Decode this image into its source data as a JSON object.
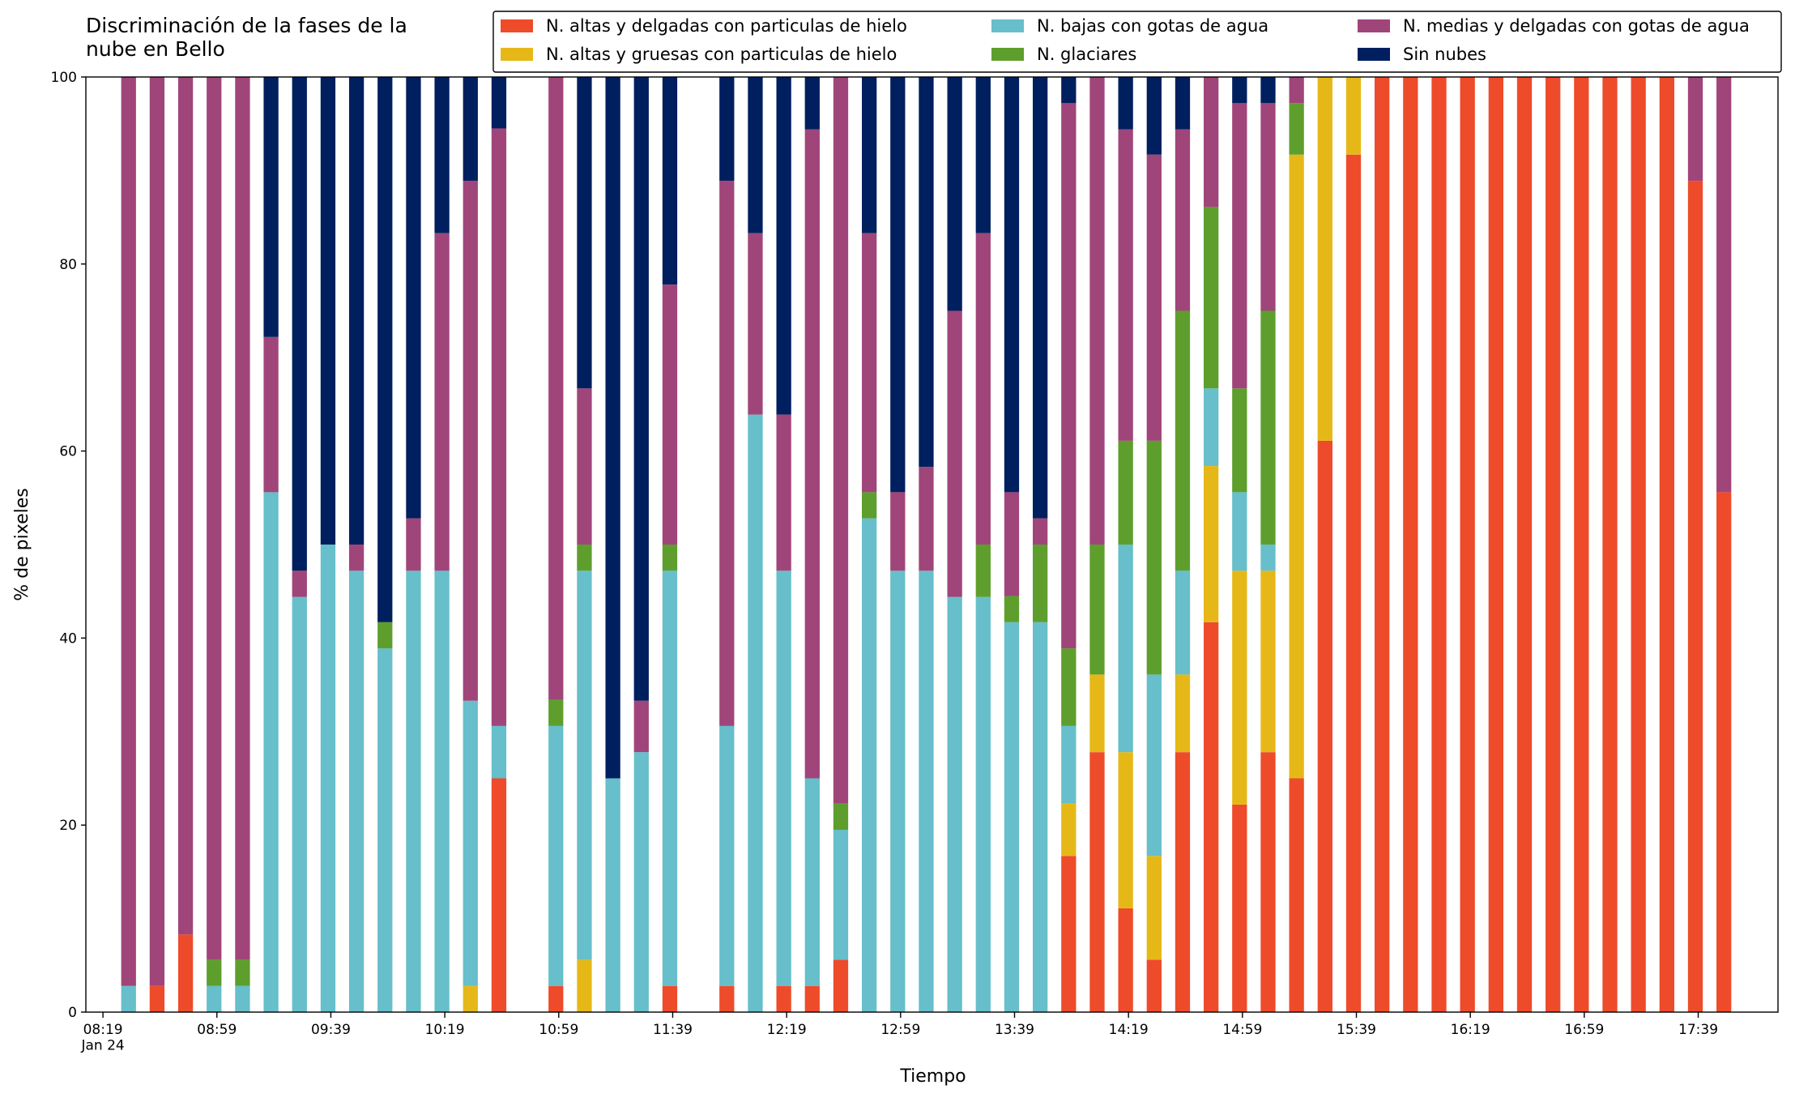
{
  "chart_data": {
    "type": "stacked_bar",
    "title": "Discriminación de la fases de la\nnube en Bello",
    "xlabel": "Tiempo",
    "ylabel": "% de pixeles",
    "x": [
      "08:28",
      "08:38",
      "08:48",
      "08:58",
      "09:08",
      "09:18",
      "09:28",
      "09:38",
      "09:48",
      "09:58",
      "10:08",
      "10:18",
      "10:28",
      "10:38",
      "10:58",
      "11:08",
      "11:18",
      "11:28",
      "11:38",
      "11:58",
      "12:08",
      "12:18",
      "12:28",
      "12:38",
      "12:48",
      "12:58",
      "13:08",
      "13:18",
      "13:28",
      "13:38",
      "13:48",
      "13:58",
      "14:08",
      "14:18",
      "14:28",
      "14:38",
      "14:48",
      "14:58",
      "15:08",
      "15:18",
      "15:28",
      "15:38",
      "15:48",
      "15:58",
      "16:08",
      "16:18",
      "16:28",
      "16:38",
      "16:48",
      "16:58",
      "17:08",
      "17:18",
      "17:28",
      "17:38",
      "17:48"
    ],
    "xlim": [
      "08:13",
      "18:07"
    ],
    "xticks": [
      {
        "value": "08:19",
        "label": "08:19\nJan 24"
      },
      "08:59",
      "09:39",
      "10:19",
      "10:59",
      "11:39",
      "12:19",
      "12:59",
      "13:39",
      "14:19",
      "14:59",
      "15:39",
      "16:19",
      "16:59",
      "17:39"
    ],
    "ylim": [
      0,
      100
    ],
    "yticks": [
      0,
      20,
      40,
      60,
      80,
      100
    ],
    "legend": "upper right",
    "series": [
      {
        "name": "N. altas y delgadas con particulas de hielo",
        "color": "#ee4b2b",
        "values": [
          0,
          2.8,
          8.3,
          0,
          0,
          0,
          0,
          0,
          0,
          0,
          0,
          0,
          0,
          25,
          2.8,
          0,
          0,
          0,
          2.8,
          2.8,
          0,
          2.8,
          2.8,
          5.6,
          0,
          0,
          0,
          0,
          0,
          0,
          0,
          16.7,
          27.8,
          11.1,
          5.6,
          27.8,
          41.7,
          22.2,
          27.8,
          25,
          61.1,
          91.7,
          100,
          100,
          100,
          100,
          100,
          100,
          100,
          100,
          100,
          100,
          100,
          88.9,
          55.6
        ]
      },
      {
        "name": "N. altas y gruesas con particulas de hielo",
        "color": "#e6b817",
        "values": [
          0,
          0,
          0,
          0,
          0,
          0,
          0,
          0,
          0,
          0,
          0,
          0,
          2.8,
          0,
          0,
          5.6,
          0,
          0,
          0,
          0,
          0,
          0,
          0,
          0,
          0,
          0,
          0,
          0,
          0,
          0,
          0,
          5.6,
          8.3,
          16.7,
          11.1,
          8.3,
          16.7,
          25,
          19.4,
          66.7,
          38.9,
          8.3,
          0,
          0,
          0,
          0,
          0,
          0,
          0,
          0,
          0,
          0,
          0,
          0,
          0
        ]
      },
      {
        "name": "N. bajas con gotas de agua",
        "color": "#66bfca",
        "values": [
          2.8,
          0,
          0,
          2.8,
          2.8,
          55.6,
          44.4,
          50,
          47.2,
          38.9,
          47.2,
          47.2,
          30.5,
          5.6,
          27.8,
          41.6,
          25,
          27.8,
          44.4,
          27.8,
          63.9,
          44.4,
          22.2,
          13.9,
          52.8,
          47.2,
          47.2,
          44.4,
          44.4,
          41.7,
          41.7,
          8.3,
          0,
          22.2,
          19.4,
          11.1,
          8.3,
          8.4,
          2.8,
          0,
          0,
          0,
          0,
          0,
          0,
          0,
          0,
          0,
          0,
          0,
          0,
          0,
          0,
          0,
          0
        ]
      },
      {
        "name": "N. glaciares",
        "color": "#5e9e2d",
        "values": [
          0,
          0,
          0,
          2.8,
          2.8,
          0,
          0,
          0,
          0,
          2.8,
          0,
          0,
          0,
          0,
          2.8,
          2.8,
          0,
          0,
          2.8,
          0,
          0,
          0,
          0,
          2.8,
          2.8,
          0,
          0,
          0,
          5.6,
          2.8,
          8.3,
          8.3,
          13.9,
          11.1,
          25,
          27.8,
          19.4,
          11.1,
          25,
          5.5,
          0,
          0,
          0,
          0,
          0,
          0,
          0,
          0,
          0,
          0,
          0,
          0,
          0,
          0,
          0
        ]
      },
      {
        "name": "N. medias y delgadas con gotas de agua",
        "color": "#a0457a",
        "values": [
          97.2,
          97.2,
          91.7,
          94.4,
          94.4,
          16.6,
          2.8,
          0,
          2.8,
          0,
          5.6,
          36.1,
          55.6,
          63.9,
          66.6,
          16.7,
          0,
          5.5,
          27.8,
          58.3,
          19.4,
          16.7,
          69.4,
          77.7,
          27.7,
          8.4,
          11.1,
          30.6,
          33.3,
          11.1,
          2.8,
          58.3,
          50,
          33.3,
          30.6,
          19.4,
          13.9,
          30.5,
          22.2,
          2.8,
          0,
          0,
          0,
          0,
          0,
          0,
          0,
          0,
          0,
          0,
          0,
          0,
          0,
          11.1,
          44.4
        ]
      },
      {
        "name": "Sin nubes",
        "color": "#001f5f",
        "values": [
          0,
          0,
          0,
          0,
          0,
          27.8,
          52.8,
          50,
          50,
          58.3,
          47.2,
          16.7,
          11.1,
          5.5,
          0,
          33.3,
          75,
          66.7,
          22.2,
          11.1,
          16.7,
          36.1,
          5.6,
          0,
          16.7,
          44.4,
          41.7,
          25,
          16.7,
          44.4,
          47.2,
          2.8,
          0,
          5.6,
          8.3,
          5.6,
          0,
          2.8,
          2.8,
          0,
          0,
          0,
          0,
          0,
          0,
          0,
          0,
          0,
          0,
          0,
          0,
          0,
          0,
          0,
          0
        ]
      }
    ]
  }
}
